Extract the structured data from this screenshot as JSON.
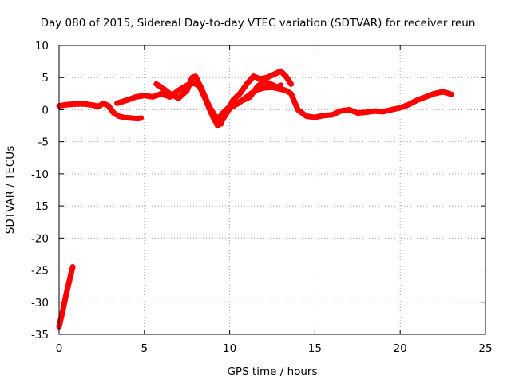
{
  "chart_data": {
    "type": "line",
    "title": "Day 080 of 2015, Sidereal Day-to-day VTEC variation (SDTVAR) for receiver reun",
    "xlabel": "GPS time / hours",
    "ylabel": "SDTVAR / TECUs",
    "xlim": [
      0,
      25
    ],
    "ylim": [
      -35,
      10
    ],
    "xticks": [
      0,
      5,
      10,
      15,
      20,
      25
    ],
    "yticks": [
      10,
      5,
      0,
      -5,
      -10,
      -15,
      -20,
      -25,
      -30,
      -35
    ],
    "grid": true,
    "series_color": "#ff0000",
    "series": [
      {
        "name": "trace-a",
        "x": [
          0.0,
          0.5,
          1.0,
          1.5,
          2.0,
          2.3,
          2.6,
          2.9,
          3.2,
          3.5,
          3.8,
          4.2,
          4.6,
          4.8
        ],
        "y": [
          0.6,
          0.8,
          0.9,
          0.9,
          0.7,
          0.5,
          1.0,
          0.6,
          -0.5,
          -1.0,
          -1.2,
          -1.3,
          -1.4,
          -1.3
        ]
      },
      {
        "name": "trace-b",
        "x": [
          3.4,
          4.0,
          4.5,
          5.0,
          5.5,
          6.0,
          6.5,
          7.0,
          7.5,
          7.8,
          8.2,
          8.6,
          9.0,
          9.3,
          9.6,
          10.0,
          10.5,
          11.0,
          11.5,
          12.0,
          12.5,
          13.0,
          13.3,
          13.6,
          14.0,
          14.5,
          15.0,
          15.5,
          16.0,
          16.5,
          17.0,
          17.5,
          18.0,
          18.5,
          19.0,
          19.5,
          20.0,
          20.5,
          21.0,
          21.5,
          22.0,
          22.5,
          23.0
        ],
        "y": [
          1.0,
          1.5,
          2.0,
          2.2,
          2.0,
          2.5,
          2.0,
          3.0,
          3.8,
          4.2,
          3.8,
          1.5,
          -1.0,
          -2.5,
          -1.5,
          0.2,
          1.0,
          2.0,
          3.0,
          3.4,
          3.5,
          3.2,
          3.0,
          2.5,
          0.0,
          -1.0,
          -1.2,
          -0.9,
          -0.8,
          -0.2,
          0.0,
          -0.5,
          -0.4,
          -0.2,
          -0.3,
          0.0,
          0.3,
          0.8,
          1.5,
          2.0,
          2.5,
          2.8,
          2.4
        ]
      },
      {
        "name": "trace-c",
        "x": [
          5.7,
          6.0,
          6.5,
          7.0,
          7.5,
          7.8,
          8.0,
          8.4,
          8.8,
          9.2,
          9.5
        ],
        "y": [
          4.0,
          3.5,
          2.5,
          1.8,
          3.0,
          5.0,
          5.2,
          3.0,
          0.5,
          -1.2,
          -2.2
        ]
      },
      {
        "name": "trace-d",
        "x": [
          9.5,
          9.8,
          10.2,
          10.6,
          11.0,
          11.4,
          11.8,
          12.2,
          12.6,
          13.0,
          13.3,
          13.6
        ],
        "y": [
          -2.0,
          -0.5,
          1.5,
          2.5,
          4.0,
          5.2,
          4.8,
          5.0,
          5.5,
          6.0,
          5.2,
          4.0
        ]
      },
      {
        "name": "trace-e",
        "x": [
          9.3,
          9.6,
          10.0,
          10.4,
          10.8,
          11.2,
          11.6,
          12.0,
          12.4,
          12.8,
          13.0
        ],
        "y": [
          -1.5,
          -0.5,
          0.5,
          1.0,
          1.5,
          2.0,
          3.5,
          4.5,
          4.0,
          3.5,
          3.8
        ]
      },
      {
        "name": "trace-f",
        "x": [
          0.0,
          0.2,
          0.4,
          0.6,
          0.8
        ],
        "y": [
          -33.8,
          -31.5,
          -29.0,
          -26.7,
          -24.5
        ]
      }
    ]
  }
}
